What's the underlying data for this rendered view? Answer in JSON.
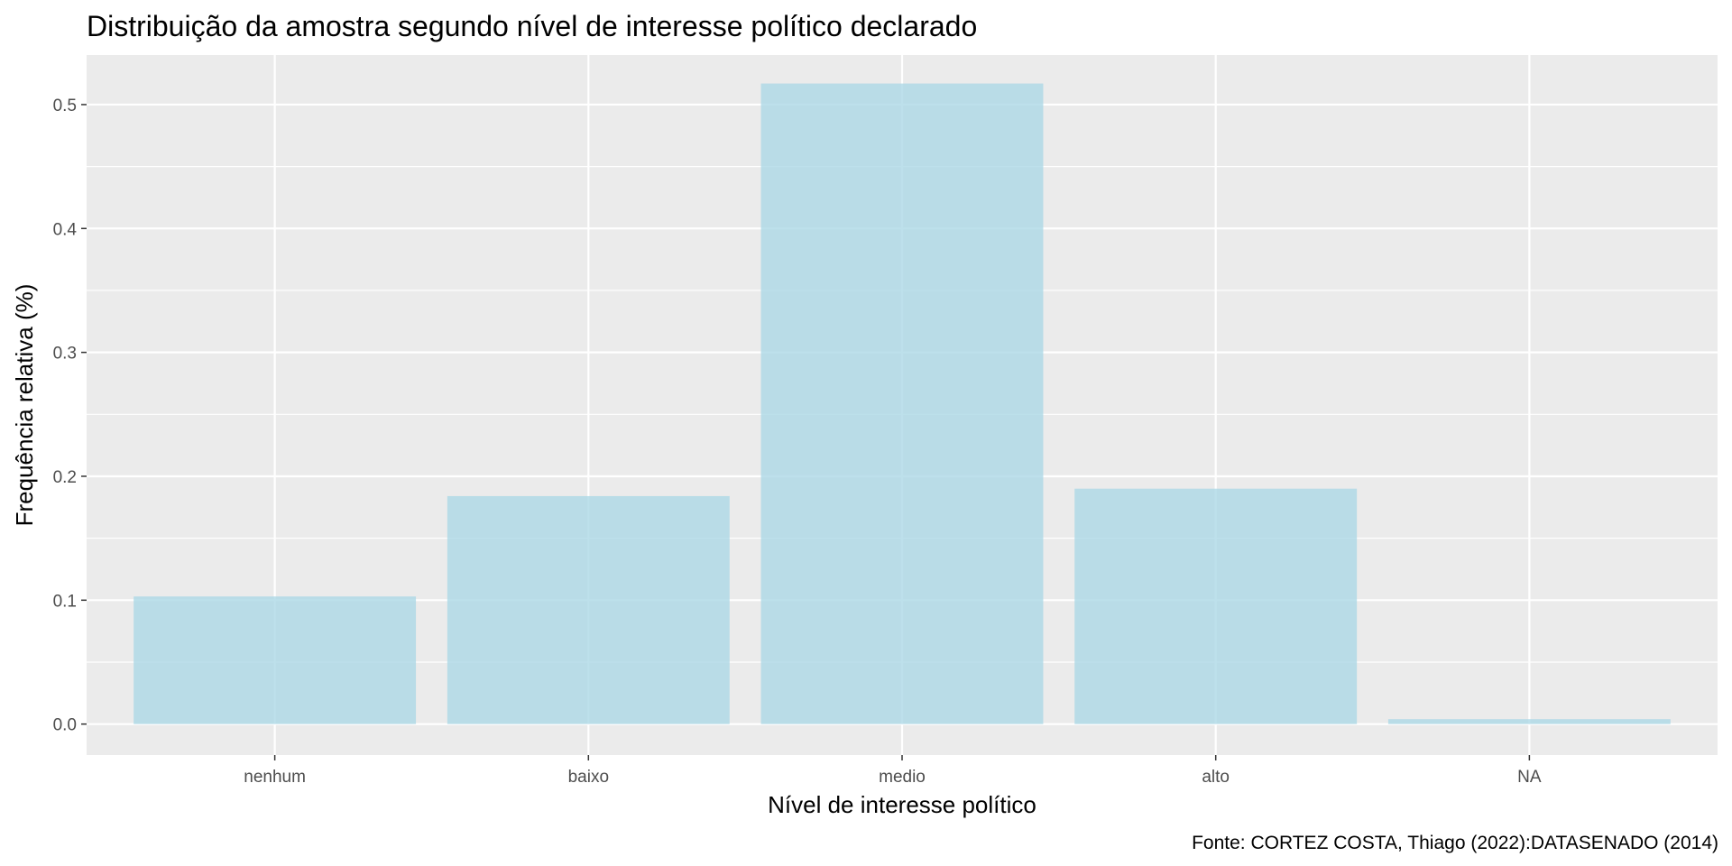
{
  "chart_data": {
    "type": "bar",
    "title": "Distribuição da amostra segundo nível de interesse político declarado",
    "xlabel": "Nível de interesse político",
    "ylabel": "Frequência relativa (%)",
    "caption": "Fonte: CORTEZ COSTA, Thiago (2022):DATASENADO (2014)",
    "categories": [
      "nenhum",
      "baixo",
      "medio",
      "alto",
      "NA"
    ],
    "values": [
      0.103,
      0.184,
      0.517,
      0.19,
      0.004
    ],
    "ylim": [
      -0.025,
      0.54
    ],
    "yticks": [
      0.0,
      0.1,
      0.2,
      0.3,
      0.4,
      0.5
    ],
    "ytick_labels": [
      "0.0",
      "0.1",
      "0.2",
      "0.3",
      "0.4",
      "0.5"
    ],
    "grid": true,
    "bar_color": "#add8e6",
    "panel_color": "#ebebeb",
    "grid_color": "#ffffff"
  }
}
